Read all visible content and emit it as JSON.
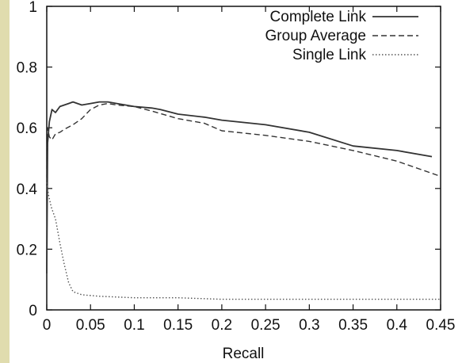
{
  "chart_data": {
    "type": "line",
    "title": "",
    "xlabel": "Recall",
    "ylabel": "",
    "xlim": [
      0,
      0.45
    ],
    "ylim": [
      0,
      1.0
    ],
    "grid": false,
    "legend_position": "top-right",
    "x_ticks": [
      "0",
      "0.05",
      "0.1",
      "0.15",
      "0.2",
      "0.25",
      "0.3",
      "0.35",
      "0.4",
      "0.45"
    ],
    "y_ticks": [
      "0",
      "0.2",
      "0.4",
      "0.6",
      "0.8",
      "1"
    ],
    "series": [
      {
        "name": "Complete Link",
        "style": "solid",
        "color": "#333333",
        "x": [
          0,
          0.001,
          0.003,
          0.006,
          0.01,
          0.015,
          0.02,
          0.025,
          0.03,
          0.04,
          0.05,
          0.06,
          0.07,
          0.08,
          0.1,
          0.12,
          0.13,
          0.15,
          0.18,
          0.2,
          0.25,
          0.3,
          0.35,
          0.4,
          0.44
        ],
        "y": [
          0.12,
          0.55,
          0.62,
          0.66,
          0.65,
          0.67,
          0.675,
          0.68,
          0.685,
          0.675,
          0.68,
          0.685,
          0.685,
          0.68,
          0.67,
          0.665,
          0.66,
          0.645,
          0.635,
          0.625,
          0.61,
          0.585,
          0.54,
          0.525,
          0.505
        ]
      },
      {
        "name": "Group Average",
        "style": "dashed",
        "color": "#333333",
        "x": [
          0,
          0.001,
          0.003,
          0.006,
          0.01,
          0.015,
          0.02,
          0.03,
          0.04,
          0.05,
          0.06,
          0.07,
          0.08,
          0.1,
          0.12,
          0.15,
          0.18,
          0.2,
          0.25,
          0.3,
          0.35,
          0.4,
          0.45
        ],
        "y": [
          0.36,
          0.6,
          0.57,
          0.56,
          0.58,
          0.585,
          0.595,
          0.61,
          0.63,
          0.66,
          0.675,
          0.68,
          0.675,
          0.67,
          0.655,
          0.63,
          0.615,
          0.59,
          0.575,
          0.555,
          0.525,
          0.49,
          0.44
        ]
      },
      {
        "name": "Single Link",
        "style": "dotted",
        "color": "#555555",
        "x": [
          0,
          0.002,
          0.005,
          0.01,
          0.015,
          0.02,
          0.025,
          0.03,
          0.04,
          0.06,
          0.1,
          0.15,
          0.2,
          0.3,
          0.4,
          0.45
        ],
        "y": [
          0.42,
          0.38,
          0.34,
          0.3,
          0.22,
          0.15,
          0.09,
          0.06,
          0.05,
          0.045,
          0.04,
          0.04,
          0.035,
          0.035,
          0.035,
          0.035
        ]
      }
    ]
  }
}
